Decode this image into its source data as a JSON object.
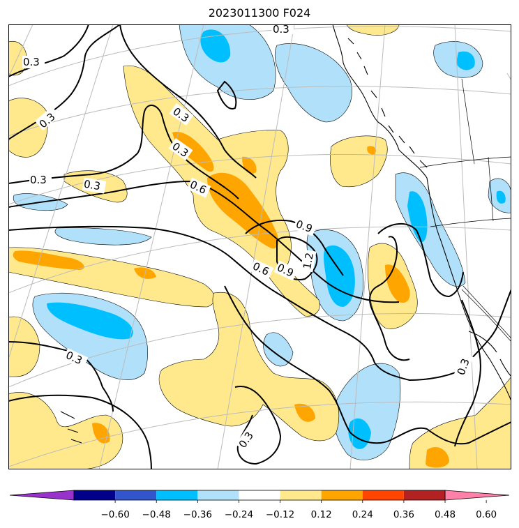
{
  "title": "2023011300 F024",
  "colorbar": {
    "ticks": [
      "−0.60",
      "−0.48",
      "−0.36",
      "−0.24",
      "−0.12",
      "0.12",
      "0.24",
      "0.36",
      "0.48",
      "0.60"
    ],
    "colors": [
      "#9932cc",
      "#00008b",
      "#3355cc",
      "#00bfff",
      "#b0e0fa",
      "#ffffff",
      "#ffe98c",
      "#ffa500",
      "#ff4500",
      "#b22222",
      "#ff80a8"
    ]
  },
  "contour_labels": [
    "0.3",
    "0.3",
    "0.3",
    "0.3",
    "0.3",
    "0.3",
    "0.3",
    "0.3",
    "0.3",
    "0.3",
    "0.6",
    "0.6",
    "0.9",
    "0.9",
    "1.2"
  ],
  "colors": {
    "neg_light": "#b0e0fa",
    "neg_mid": "#00bfff",
    "pos_light": "#ffe98c",
    "pos_mid": "#ffa500",
    "graticule": "#bbbbbb"
  }
}
